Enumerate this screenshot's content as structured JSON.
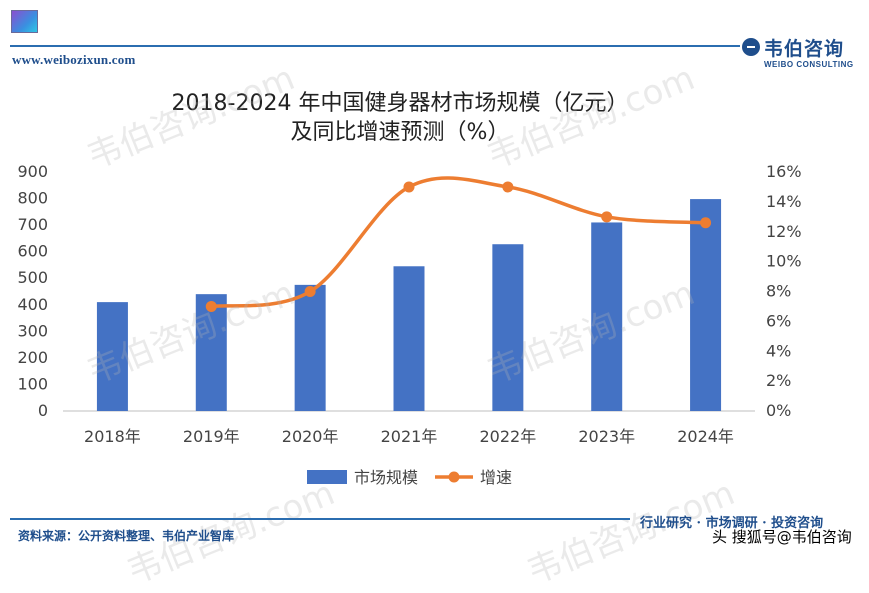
{
  "header": {
    "site_url": "www.weibozixun.com",
    "brand_cn": "韦伯咨询",
    "brand_en": "WEIBO CONSULTING"
  },
  "footer": {
    "source": "资料来源：公开资料整理、韦伯产业智库",
    "slogan": "行业研究 · 市场调研 · 投资咨询",
    "credit": "头 搜狐号@韦伯咨询"
  },
  "watermark": "韦伯咨询.com",
  "colors": {
    "bar": "#4472c4",
    "line": "#ed7d31",
    "brand": "#1f4e8c"
  },
  "chart_data": {
    "type": "bar",
    "title": "2018-2024 年中国健身器材市场规模（亿元）",
    "subtitle": "及同比增速预测（%）",
    "categories": [
      "2018年",
      "2019年",
      "2020年",
      "2021年",
      "2022年",
      "2023年",
      "2024年"
    ],
    "series": [
      {
        "name": "市场规模",
        "type": "bar",
        "axis": "left",
        "values": [
          410,
          440,
          475,
          545,
          628,
          710,
          798
        ]
      },
      {
        "name": "增速",
        "type": "line",
        "axis": "right",
        "smooth": true,
        "values": [
          null,
          7.0,
          8.0,
          15.0,
          15.0,
          13.0,
          12.6
        ]
      }
    ],
    "ylim": [
      0,
      900
    ],
    "yticks": [
      "0",
      "100",
      "200",
      "300",
      "400",
      "500",
      "600",
      "700",
      "800",
      "900"
    ],
    "y2lim": [
      0,
      16
    ],
    "y2ticks": [
      "0%",
      "2%",
      "4%",
      "6%",
      "8%",
      "10%",
      "12%",
      "14%",
      "16%"
    ],
    "grid": false,
    "legend": "bottom"
  }
}
